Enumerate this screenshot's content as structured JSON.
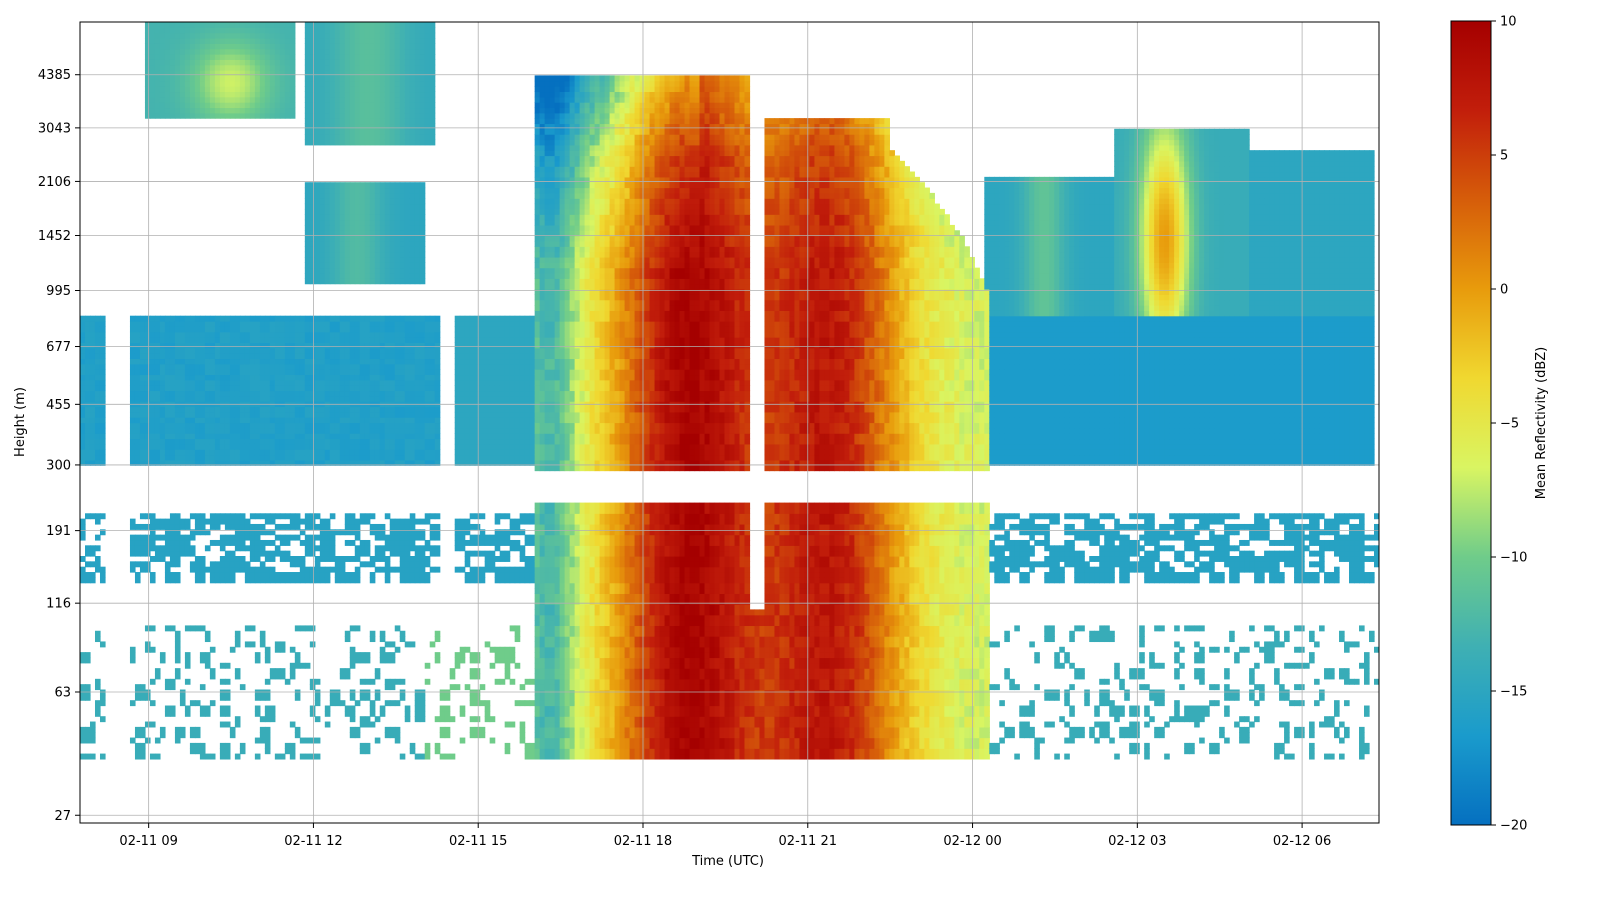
{
  "chart_data": {
    "type": "heatmap",
    "title": "",
    "xlabel": "Time (UTC)",
    "ylabel": "Height (m)",
    "x_tick_labels": [
      "02-11 09",
      "02-11 12",
      "02-11 15",
      "02-11 18",
      "02-11 21",
      "02-12 00",
      "02-12 03",
      "02-12 06"
    ],
    "x_tick_hours": [
      9,
      12,
      15,
      18,
      21,
      24,
      27,
      30
    ],
    "xlim_hours": [
      7.75,
      31.4
    ],
    "y_tick_labels": [
      "27",
      "63",
      "116",
      "191",
      "300",
      "455",
      "677",
      "995",
      "1452",
      "2106",
      "3043",
      "4385"
    ],
    "y_scale": "log",
    "ylim": [
      25.6,
      6300
    ],
    "grid": true,
    "colorbar": {
      "label": "Mean Reflectivity (dBZ)",
      "range": [
        -20,
        10
      ],
      "ticks": [
        10,
        5,
        0,
        -5,
        -10,
        -15,
        -20
      ],
      "colormap_stops": [
        "#0570c0",
        "#1a9bcc",
        "#3fb0b3",
        "#6fcc8a",
        "#d9f562",
        "#f0d830",
        "#e89b0c",
        "#d65d0a",
        "#c21e0b",
        "#a50000"
      ]
    },
    "structures": [
      {
        "name": "low cloud layer",
        "t_start": 7.8,
        "t_end": 14.3,
        "h_bottom": 250,
        "h_top": 830,
        "dbz": -16
      },
      {
        "name": "main precipitation core",
        "t_start": 17.6,
        "t_end": 19.9,
        "h_bottom": 40,
        "h_top": 1300,
        "dbz": 9
      },
      {
        "name": "second precipitation core",
        "t_start": 20.3,
        "t_end": 22.5,
        "h_bottom": 40,
        "h_top": 2000,
        "dbz": 7
      },
      {
        "name": "upper cloud cell",
        "t_start": 27.0,
        "t_end": 28.0,
        "h_bottom": 650,
        "h_top": 3000,
        "dbz": -1
      }
    ]
  }
}
